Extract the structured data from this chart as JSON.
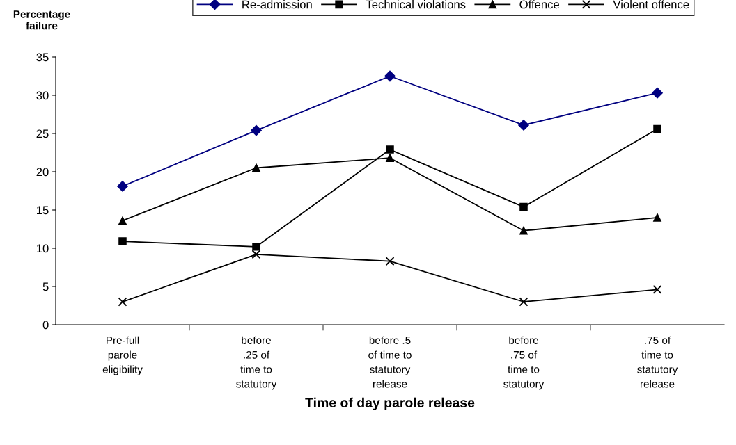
{
  "chart_data": {
    "type": "line",
    "xlabel": "Time of day parole release",
    "ylabel": "Percentage\nfailure",
    "categories": [
      "Pre-full\nparole\neligibility",
      "before\n.25 of\ntime to\nstatutory",
      "before .5\nof time to\nstatutory\nrelease",
      "before\n.75 of\ntime to\nstatutory",
      ".75 of\ntime to\nstatutory\nrelease"
    ],
    "series": [
      {
        "name": "Re-admission",
        "color": "#000080",
        "marker": "diamond",
        "values": [
          18.1,
          25.4,
          32.5,
          26.1,
          30.3
        ]
      },
      {
        "name": "Technical violations",
        "color": "#000000",
        "marker": "square",
        "values": [
          10.9,
          10.2,
          22.9,
          15.4,
          25.6
        ]
      },
      {
        "name": "Offence",
        "color": "#000000",
        "marker": "triangle",
        "values": [
          13.6,
          20.5,
          21.8,
          12.3,
          14.0
        ]
      },
      {
        "name": "Violent offence",
        "color": "#000000",
        "marker": "cross",
        "values": [
          3.0,
          9.2,
          8.3,
          3.0,
          4.6
        ]
      }
    ],
    "ylim": [
      0,
      35
    ],
    "yticks": [
      0,
      5,
      10,
      15,
      20,
      25,
      30,
      35
    ],
    "legend": "top",
    "grid": false
  }
}
